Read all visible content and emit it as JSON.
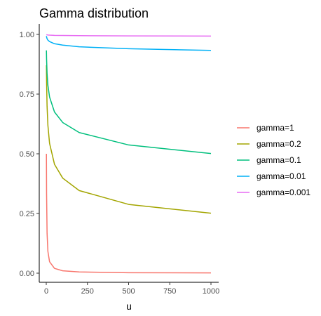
{
  "chart_data": {
    "type": "line",
    "title": "Gamma distribution",
    "xlabel": "u",
    "ylabel": "",
    "xlim": [
      0,
      1000
    ],
    "ylim": [
      0,
      1
    ],
    "grid": false,
    "legend_position": "right",
    "x_ticks": [
      0,
      250,
      500,
      750,
      1000
    ],
    "x_tick_labels": [
      "0",
      "250",
      "500",
      "750",
      "1000"
    ],
    "y_ticks": [
      0,
      0.25,
      0.5,
      0.75,
      1
    ],
    "y_tick_labels": [
      "0.00",
      "0.25",
      "0.50",
      "0.75",
      "1.00"
    ],
    "x": [
      1,
      2,
      5,
      10,
      20,
      50,
      100,
      200,
      500,
      1000
    ],
    "series": [
      {
        "name": "gamma=1",
        "color": "#F8766D",
        "values": [
          0.5,
          0.333,
          0.167,
          0.091,
          0.048,
          0.02,
          0.01,
          0.005,
          0.002,
          0.001
        ]
      },
      {
        "name": "gamma=0.2",
        "color": "#A3A500",
        "values": [
          0.871,
          0.803,
          0.699,
          0.619,
          0.544,
          0.456,
          0.398,
          0.346,
          0.288,
          0.251
        ]
      },
      {
        "name": "gamma=0.1",
        "color": "#00BF7D",
        "values": [
          0.933,
          0.896,
          0.836,
          0.787,
          0.738,
          0.675,
          0.631,
          0.589,
          0.537,
          0.501
        ]
      },
      {
        "name": "gamma=0.01",
        "color": "#00B0F6",
        "values": [
          0.993,
          0.989,
          0.982,
          0.976,
          0.97,
          0.961,
          0.955,
          0.948,
          0.94,
          0.933
        ]
      },
      {
        "name": "gamma=0.001",
        "color": "#E76BF3",
        "values": [
          0.9993,
          0.9989,
          0.9982,
          0.9976,
          0.997,
          0.9961,
          0.9954,
          0.9947,
          0.9938,
          0.9931
        ]
      }
    ]
  }
}
